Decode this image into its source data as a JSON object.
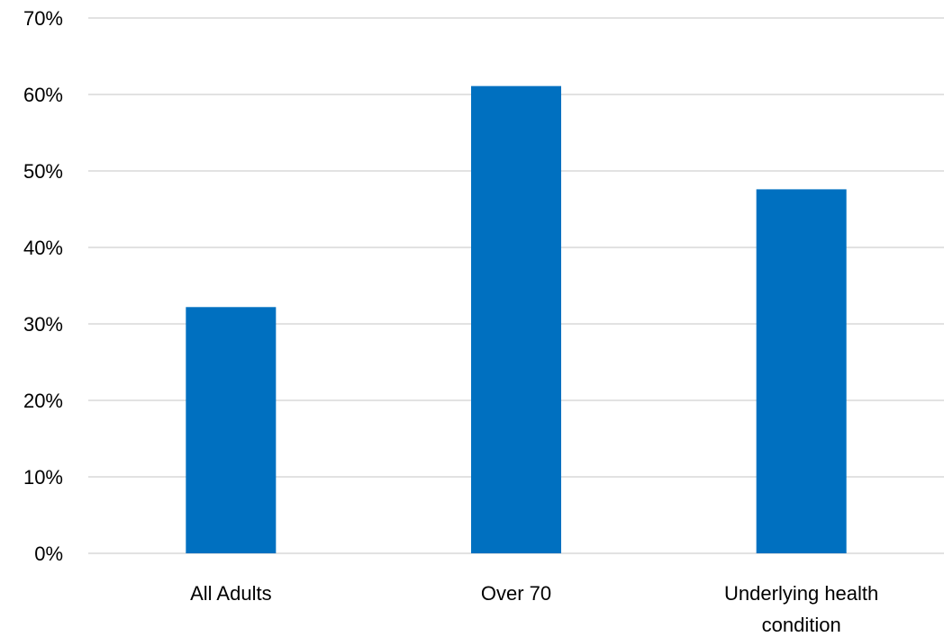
{
  "chart_data": {
    "type": "bar",
    "title": "",
    "xlabel": "",
    "ylabel": "",
    "categories": [
      "All Adults",
      "Over 70",
      "Underlying health condition"
    ],
    "category_label_lines": [
      [
        "All Adults"
      ],
      [
        "Over 70"
      ],
      [
        "Underlying health",
        "condition"
      ]
    ],
    "values": [
      32.2,
      61.1,
      47.6
    ],
    "ylim": [
      0,
      70
    ],
    "yticks": [
      0,
      10,
      20,
      30,
      40,
      50,
      60,
      70
    ],
    "ytick_labels": [
      "0%",
      "10%",
      "20%",
      "30%",
      "40%",
      "50%",
      "60%",
      "70%"
    ],
    "grid": true,
    "legend": "none",
    "bar_color": "#0070c0",
    "grid_color": "#d9d9d9"
  }
}
